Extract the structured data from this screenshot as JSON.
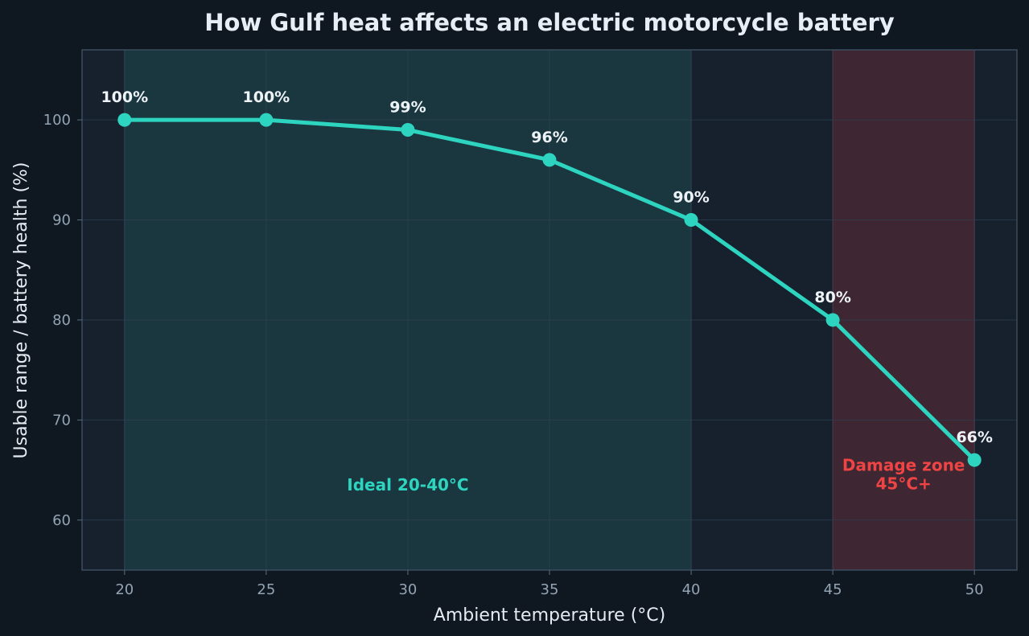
{
  "chart_data": {
    "type": "line",
    "title": "How Gulf heat affects an electric motorcycle battery",
    "xlabel": "Ambient temperature (°C)",
    "ylabel": "Usable range / battery health (%)",
    "x": [
      20,
      25,
      30,
      35,
      40,
      45,
      50
    ],
    "series": [
      {
        "values": [
          100,
          100,
          99,
          96,
          90,
          80,
          66
        ]
      }
    ],
    "data_labels": [
      "100%",
      "100%",
      "99%",
      "96%",
      "90%",
      "80%",
      "66%"
    ],
    "xticks": [
      20,
      25,
      30,
      35,
      40,
      45,
      50
    ],
    "yticks": [
      60,
      70,
      80,
      90,
      100
    ],
    "xlim": [
      18.5,
      51.5
    ],
    "ylim": [
      55,
      107
    ],
    "grid": true,
    "zones": [
      {
        "name": "ideal",
        "label_lines": [
          "Ideal 20-40°C"
        ],
        "x_start": 20,
        "x_end": 40,
        "label_x": 30,
        "label_y": 63.5,
        "color": "#2dd4bf"
      },
      {
        "name": "damage",
        "label_lines": [
          "Damage zone",
          "45°C+"
        ],
        "x_start": 45,
        "x_end": 50,
        "label_x": 47.5,
        "label_y": 65.5,
        "color": "#ef4444"
      }
    ],
    "colors": {
      "background": "#0f1720",
      "plot_background": "#16212d",
      "line": "#2dd4bf",
      "grid": "#2e3f4f",
      "ideal_fill": "#1f4a4f",
      "damage_fill": "#5a2a36"
    }
  }
}
